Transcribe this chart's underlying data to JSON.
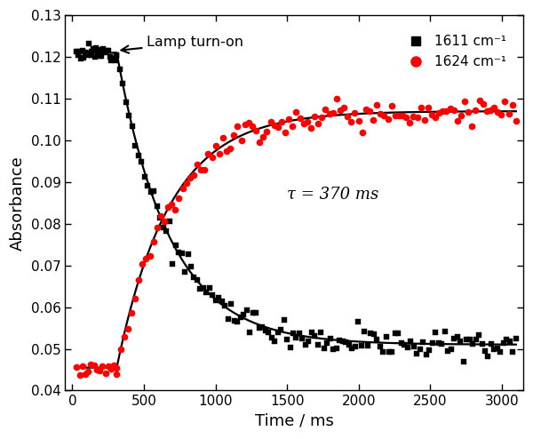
{
  "title": "",
  "xlabel": "Time / ms",
  "ylabel": "Absorbance",
  "xlim": [
    -50,
    3150
  ],
  "ylim": [
    0.04,
    0.13
  ],
  "yticks": [
    0.04,
    0.05,
    0.06,
    0.07,
    0.08,
    0.09,
    0.1,
    0.11,
    0.12,
    0.13
  ],
  "xticks": [
    0,
    500,
    1000,
    1500,
    2000,
    2500,
    3000
  ],
  "tau": 370,
  "lamp_turnon_t0": 310,
  "black_A0": 0.121,
  "black_Ainf": 0.051,
  "red_A0": 0.0455,
  "red_Ainf": 0.107,
  "annotation_tau": "τ = 370 ms",
  "annotation_lamp": "Lamp turn-on",
  "legend_label_black": "1611 cm⁻¹",
  "legend_label_red": "1624 cm⁻¹",
  "color_black": "#000000",
  "color_red": "#ff0000",
  "background_color": "#ffffff",
  "marker_size_black": 4.0,
  "marker_size_red": 5.5,
  "noise_black": 0.0008,
  "noise_red": 0.0015,
  "n_black_pre": 30,
  "n_black_post": 130,
  "n_red_pre": 15,
  "n_red_post": 110
}
